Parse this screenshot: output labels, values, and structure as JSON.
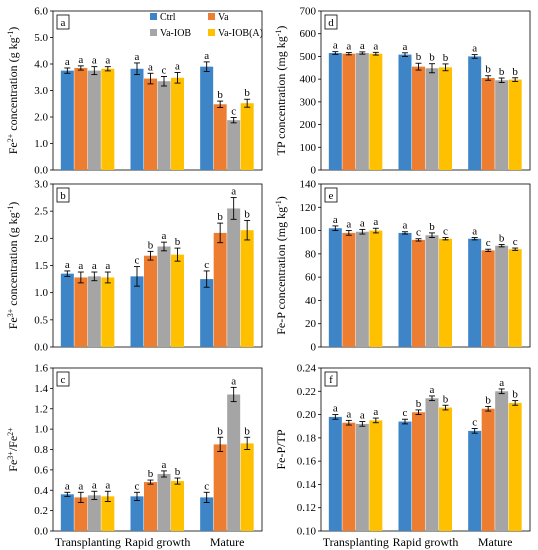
{
  "categories_x": [
    "Transplanting",
    "Rapid growth",
    "Mature"
  ],
  "legend": [
    {
      "name": "Ctrl",
      "color": "#3d85c6"
    },
    {
      "name": "Va",
      "color": "#ed7d31"
    },
    {
      "name": "Va-IOB",
      "color": "#a5a5a5"
    },
    {
      "name": "Va-IOB(A)",
      "color": "#ffc000"
    }
  ],
  "chart_data": [
    {
      "panel": "a",
      "type": "bar",
      "ylabel": "Fe2+ concentration (g kg-1)",
      "ylabel_parts": [
        {
          "t": "Fe"
        },
        {
          "t": "2+",
          "sup": true
        },
        {
          "t": " concentration (g kg"
        },
        {
          "t": "-1",
          "sup": true
        },
        {
          "t": ")"
        }
      ],
      "ylim": [
        0,
        6
      ],
      "ytick_step": 1,
      "ytick_decimals": 1,
      "categories": [
        "Transplanting",
        "Rapid growth",
        "Mature"
      ],
      "series": [
        {
          "name": "Ctrl",
          "values": [
            3.75,
            3.82,
            3.9
          ],
          "errors": [
            0.1,
            0.22,
            0.18
          ],
          "letters": [
            "a",
            "a",
            "a"
          ]
        },
        {
          "name": "Va",
          "values": [
            3.85,
            3.45,
            2.48
          ],
          "errors": [
            0.08,
            0.2,
            0.12
          ],
          "letters": [
            "a",
            "a",
            "b"
          ]
        },
        {
          "name": "Va-IOB",
          "values": [
            3.75,
            3.35,
            1.88
          ],
          "errors": [
            0.15,
            0.18,
            0.1
          ],
          "letters": [
            "a",
            "c",
            "c"
          ]
        },
        {
          "name": "Va-IOB(A)",
          "values": [
            3.82,
            3.48,
            2.52
          ],
          "errors": [
            0.08,
            0.2,
            0.15
          ],
          "letters": [
            "a",
            "a",
            "b"
          ]
        }
      ]
    },
    {
      "panel": "b",
      "type": "bar",
      "ylabel": "Fe3+ concentration (g kg-1)",
      "ylabel_parts": [
        {
          "t": "Fe"
        },
        {
          "t": "3+",
          "sup": true
        },
        {
          "t": " concentration (g kg"
        },
        {
          "t": "-1",
          "sup": true
        },
        {
          "t": ")"
        }
      ],
      "ylim": [
        0,
        3
      ],
      "ytick_step": 0.5,
      "ytick_decimals": 1,
      "categories": [
        "Transplanting",
        "Rapid growth",
        "Mature"
      ],
      "series": [
        {
          "name": "Ctrl",
          "values": [
            1.35,
            1.3,
            1.25
          ],
          "errors": [
            0.05,
            0.18,
            0.15
          ],
          "letters": [
            "a",
            "c",
            "c"
          ]
        },
        {
          "name": "Va",
          "values": [
            1.28,
            1.68,
            2.1
          ],
          "errors": [
            0.1,
            0.08,
            0.18
          ],
          "letters": [
            "a",
            "b",
            "b"
          ]
        },
        {
          "name": "Va-IOB",
          "values": [
            1.3,
            1.85,
            2.55
          ],
          "errors": [
            0.08,
            0.08,
            0.2
          ],
          "letters": [
            "a",
            "a",
            "a"
          ]
        },
        {
          "name": "Va-IOB(A)",
          "values": [
            1.28,
            1.7,
            2.15
          ],
          "errors": [
            0.1,
            0.12,
            0.18
          ],
          "letters": [
            "a",
            "b",
            "b"
          ]
        }
      ]
    },
    {
      "panel": "c",
      "type": "bar",
      "ylabel": "Fe3+/Fe2+",
      "ylabel_parts": [
        {
          "t": "Fe"
        },
        {
          "t": "3+",
          "sup": true
        },
        {
          "t": "/Fe"
        },
        {
          "t": "2+",
          "sup": true
        }
      ],
      "ylim": [
        0,
        1.6
      ],
      "ytick_step": 0.2,
      "ytick_decimals": 1,
      "categories": [
        "Transplanting",
        "Rapid growth",
        "Mature"
      ],
      "series": [
        {
          "name": "Ctrl",
          "values": [
            0.36,
            0.34,
            0.33
          ],
          "errors": [
            0.02,
            0.04,
            0.05
          ],
          "letters": [
            "a",
            "c",
            "c"
          ]
        },
        {
          "name": "Va",
          "values": [
            0.33,
            0.48,
            0.85
          ],
          "errors": [
            0.05,
            0.02,
            0.07
          ],
          "letters": [
            "a",
            "b",
            "b"
          ]
        },
        {
          "name": "Va-IOB",
          "values": [
            0.35,
            0.56,
            1.34
          ],
          "errors": [
            0.04,
            0.03,
            0.07
          ],
          "letters": [
            "a",
            "a",
            "a"
          ]
        },
        {
          "name": "Va-IOB(A)",
          "values": [
            0.34,
            0.49,
            0.86
          ],
          "errors": [
            0.05,
            0.03,
            0.06
          ],
          "letters": [
            "a",
            "b",
            "b"
          ]
        }
      ]
    },
    {
      "panel": "d",
      "type": "bar",
      "ylabel": "TP concentration (mg kg-1)",
      "ylabel_parts": [
        {
          "t": "TP concentration (mg kg"
        },
        {
          "t": "-1",
          "sup": true
        },
        {
          "t": ")"
        }
      ],
      "ylim": [
        0,
        700
      ],
      "ytick_step": 100,
      "ytick_decimals": 0,
      "categories": [
        "Transplanting",
        "Rapid growth",
        "Mature"
      ],
      "series": [
        {
          "name": "Ctrl",
          "values": [
            515,
            508,
            500
          ],
          "errors": [
            6,
            8,
            8
          ],
          "letters": [
            "a",
            "a",
            "a"
          ]
        },
        {
          "name": "Va",
          "values": [
            512,
            455,
            405
          ],
          "errors": [
            5,
            15,
            10
          ],
          "letters": [
            "a",
            "b",
            "b"
          ]
        },
        {
          "name": "Va-IOB",
          "values": [
            515,
            448,
            395
          ],
          "errors": [
            5,
            20,
            10
          ],
          "letters": [
            "a",
            "b",
            "b"
          ]
        },
        {
          "name": "Va-IOB(A)",
          "values": [
            512,
            452,
            398
          ],
          "errors": [
            6,
            15,
            8
          ],
          "letters": [
            "a",
            "b",
            "b"
          ]
        }
      ]
    },
    {
      "panel": "e",
      "type": "bar",
      "ylabel": "Fe-P concentration (mg kg-1)",
      "ylabel_parts": [
        {
          "t": "Fe-P concentration (mg kg"
        },
        {
          "t": "-1",
          "sup": true
        },
        {
          "t": ")"
        }
      ],
      "ylim": [
        0,
        140
      ],
      "ytick_step": 20,
      "ytick_decimals": 0,
      "categories": [
        "Transplanting",
        "Rapid growth",
        "Mature"
      ],
      "series": [
        {
          "name": "Ctrl",
          "values": [
            102,
            98,
            93
          ],
          "errors": [
            2,
            1,
            1
          ],
          "letters": [
            "a",
            "a",
            "a"
          ]
        },
        {
          "name": "Va",
          "values": [
            98,
            92,
            83
          ],
          "errors": [
            2,
            1,
            1
          ],
          "letters": [
            "a",
            "c",
            "c"
          ]
        },
        {
          "name": "Va-IOB",
          "values": [
            99,
            96,
            87
          ],
          "errors": [
            2,
            2,
            1
          ],
          "letters": [
            "a",
            "b",
            "b"
          ]
        },
        {
          "name": "Va-IOB(A)",
          "values": [
            100,
            93,
            84
          ],
          "errors": [
            2,
            1,
            1
          ],
          "letters": [
            "a",
            "c",
            "c"
          ]
        }
      ]
    },
    {
      "panel": "f",
      "type": "bar",
      "ylabel": "Fe-P/TP",
      "ylabel_parts": [
        {
          "t": "Fe-P/TP"
        }
      ],
      "ylim": [
        0.1,
        0.24
      ],
      "ytick_step": 0.02,
      "ytick_decimals": 2,
      "categories": [
        "Transplanting",
        "Rapid growth",
        "Mature"
      ],
      "series": [
        {
          "name": "Ctrl",
          "values": [
            0.198,
            0.194,
            0.186
          ],
          "errors": [
            0.002,
            0.002,
            0.002
          ],
          "letters": [
            "a",
            "c",
            "c"
          ]
        },
        {
          "name": "Va",
          "values": [
            0.193,
            0.202,
            0.205
          ],
          "errors": [
            0.002,
            0.002,
            0.002
          ],
          "letters": [
            "a",
            "b",
            "b"
          ]
        },
        {
          "name": "Va-IOB",
          "values": [
            0.192,
            0.214,
            0.22
          ],
          "errors": [
            0.002,
            0.002,
            0.002
          ],
          "letters": [
            "a",
            "a",
            "a"
          ]
        },
        {
          "name": "Va-IOB(A)",
          "values": [
            0.195,
            0.206,
            0.21
          ],
          "errors": [
            0.002,
            0.002,
            0.002
          ],
          "letters": [
            "a",
            "b",
            "b"
          ]
        }
      ]
    }
  ]
}
